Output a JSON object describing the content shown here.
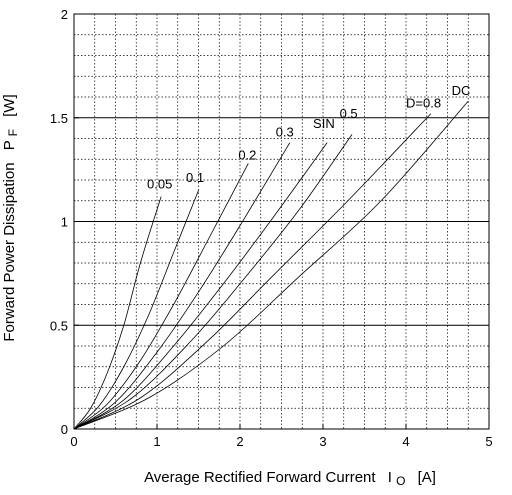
{
  "chart_data": {
    "type": "line",
    "title": "",
    "xlabel": "Average Rectified Forward Current",
    "xlabel_symbol": "I",
    "xlabel_subscript": "O",
    "xlabel_unit": "[A]",
    "ylabel": "Forward Power Dissipation",
    "ylabel_symbol": "P",
    "ylabel_subscript": "F",
    "ylabel_unit": "[W]",
    "xlim": [
      0,
      5
    ],
    "ylim": [
      0,
      2
    ],
    "x_ticks": [
      "0",
      "1",
      "2",
      "3",
      "4",
      "5"
    ],
    "y_ticks": [
      "0",
      "0.5",
      "1",
      "1.5",
      "2"
    ],
    "grid": {
      "major": true,
      "minor": true,
      "minor_style": "dotted",
      "solid_horizontal_at": [
        0.5,
        1,
        1.5
      ]
    },
    "series": [
      {
        "name": "0.05",
        "x": [
          0,
          0.2,
          0.4,
          0.6,
          0.8,
          1.05
        ],
        "y": [
          0,
          0.1,
          0.27,
          0.5,
          0.8,
          1.12
        ]
      },
      {
        "name": "0.1",
        "x": [
          0,
          0.3,
          0.6,
          0.9,
          1.2,
          1.5
        ],
        "y": [
          0,
          0.11,
          0.3,
          0.55,
          0.85,
          1.15
        ]
      },
      {
        "name": "0.2",
        "x": [
          0,
          0.4,
          0.8,
          1.2,
          1.6,
          2.1
        ],
        "y": [
          0,
          0.12,
          0.33,
          0.6,
          0.9,
          1.28
        ]
      },
      {
        "name": "0.3",
        "x": [
          0,
          0.5,
          1.0,
          1.5,
          2.0,
          2.6
        ],
        "y": [
          0,
          0.13,
          0.37,
          0.66,
          0.98,
          1.38
        ]
      },
      {
        "name": "SIN",
        "x": [
          0,
          0.6,
          1.2,
          1.8,
          2.4,
          3.05
        ],
        "y": [
          0,
          0.14,
          0.4,
          0.7,
          1.02,
          1.38
        ]
      },
      {
        "name": "0.5",
        "x": [
          0,
          0.7,
          1.4,
          2.0,
          2.7,
          3.35
        ],
        "y": [
          0,
          0.15,
          0.42,
          0.7,
          1.05,
          1.42
        ]
      },
      {
        "name": "D=0.8",
        "x": [
          0,
          0.8,
          1.6,
          2.4,
          3.3,
          4.3
        ],
        "y": [
          0,
          0.15,
          0.42,
          0.74,
          1.1,
          1.52
        ]
      },
      {
        "name": "DC",
        "x": [
          0,
          0.9,
          1.8,
          2.7,
          3.7,
          4.75
        ],
        "y": [
          0,
          0.15,
          0.4,
          0.73,
          1.1,
          1.58
        ]
      }
    ],
    "curve_labels": [
      {
        "text": "0.05",
        "x": 0.88,
        "y": 1.16
      },
      {
        "text": "0.1",
        "x": 1.35,
        "y": 1.19
      },
      {
        "text": "0.2",
        "x": 1.98,
        "y": 1.3
      },
      {
        "text": "0.3",
        "x": 2.43,
        "y": 1.41
      },
      {
        "text": "SIN",
        "x": 2.88,
        "y": 1.45
      },
      {
        "text": "0.5",
        "x": 3.2,
        "y": 1.5
      },
      {
        "text": "D=0.8",
        "x": 4.0,
        "y": 1.55
      },
      {
        "text": "DC",
        "x": 4.55,
        "y": 1.61
      }
    ]
  }
}
